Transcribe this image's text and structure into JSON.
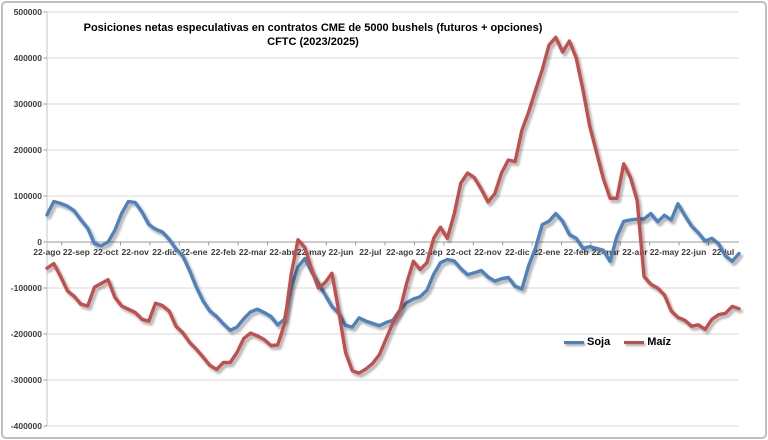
{
  "chart_data": {
    "type": "line",
    "title": "Posiciones netas especulativas en contratos CME de 5000 bushels (futuros + opciones)",
    "subtitle": "CFTC (2023/2025)",
    "xlabel": "",
    "ylabel": "",
    "ylim": [
      -400000,
      500000
    ],
    "y_ticks": [
      500000,
      400000,
      300000,
      200000,
      100000,
      0,
      -100000,
      -200000,
      -300000,
      -400000
    ],
    "x_tick_labels": [
      "22-ago",
      "22-sep",
      "22-oct",
      "22-nov",
      "22-dic",
      "22-ene",
      "22-feb",
      "22-mar",
      "22-abr",
      "22-may",
      "22-jun",
      "22-jul",
      "22-ago",
      "22-sep",
      "22-oct",
      "22-nov",
      "22-dic",
      "22-ene",
      "22-feb",
      "22-mar",
      "22-abr",
      "22-may",
      "22-jun",
      "22-jul"
    ],
    "grid": true,
    "legend_position": "inside-bottom-right",
    "series": [
      {
        "name": "Soja",
        "color": "#4F81BD",
        "values": [
          59000,
          88000,
          84000,
          78000,
          68000,
          48000,
          30000,
          -4000,
          -8000,
          0,
          25000,
          62000,
          88000,
          86000,
          65000,
          38000,
          28000,
          22000,
          6000,
          -15000,
          -30000,
          -62000,
          -98000,
          -128000,
          -150000,
          -162000,
          -178000,
          -192000,
          -185000,
          -167000,
          -152000,
          -146000,
          -153000,
          -162000,
          -180000,
          -168000,
          -98000,
          -54000,
          -36000,
          -65000,
          -90000,
          -115000,
          -140000,
          -155000,
          -181000,
          -185000,
          -165000,
          -172000,
          -177000,
          -182000,
          -175000,
          -170000,
          -148000,
          -132000,
          -124000,
          -119000,
          -105000,
          -70000,
          -45000,
          -38000,
          -41000,
          -58000,
          -71000,
          -67000,
          -62000,
          -76000,
          -85000,
          -80000,
          -77000,
          -96000,
          -102000,
          -51000,
          -13000,
          38000,
          45000,
          62000,
          45000,
          16000,
          8000,
          -14000,
          -10000,
          -14000,
          -18000,
          -42000,
          12000,
          45000,
          48000,
          50000,
          50000,
          62000,
          44000,
          58000,
          48000,
          83000,
          58000,
          35000,
          20000,
          2000,
          8000,
          -4000,
          -30000,
          -42000,
          -25000
        ]
      },
      {
        "name": "Maíz",
        "color": "#C0504D",
        "values": [
          -57000,
          -47000,
          -75000,
          -106000,
          -118000,
          -135000,
          -139000,
          -98000,
          -90000,
          -82000,
          -120000,
          -139000,
          -146000,
          -153000,
          -168000,
          -172000,
          -133000,
          -138000,
          -150000,
          -183000,
          -197000,
          -218000,
          -233000,
          -250000,
          -268000,
          -277000,
          -262000,
          -262000,
          -240000,
          -210000,
          -198000,
          -204000,
          -212000,
          -225000,
          -224000,
          -178000,
          -70000,
          5000,
          -12000,
          -60000,
          -100000,
          -88000,
          -68000,
          -150000,
          -240000,
          -280000,
          -285000,
          -276000,
          -264000,
          -245000,
          -210000,
          -175000,
          -150000,
          -90000,
          -42000,
          -60000,
          -45000,
          8000,
          32000,
          8000,
          60000,
          128000,
          150000,
          140000,
          115000,
          87000,
          105000,
          150000,
          178000,
          175000,
          243000,
          283000,
          330000,
          375000,
          428000,
          445000,
          413000,
          437000,
          400000,
          330000,
          252000,
          195000,
          138000,
          95000,
          95000,
          170000,
          140000,
          90000,
          -75000,
          -92000,
          -100000,
          -115000,
          -150000,
          -164000,
          -170000,
          -183000,
          -180000,
          -190000,
          -168000,
          -158000,
          -155000,
          -140000,
          -145000
        ]
      }
    ]
  },
  "colors": {
    "gridline": "#d9d9d9",
    "zero_axis": "#9a9a9a",
    "left_axis": "#c6c6c6",
    "tick": "#9a9a9a",
    "axis_text": "#3d3d3d",
    "frame_border": "#bfbfbf"
  }
}
